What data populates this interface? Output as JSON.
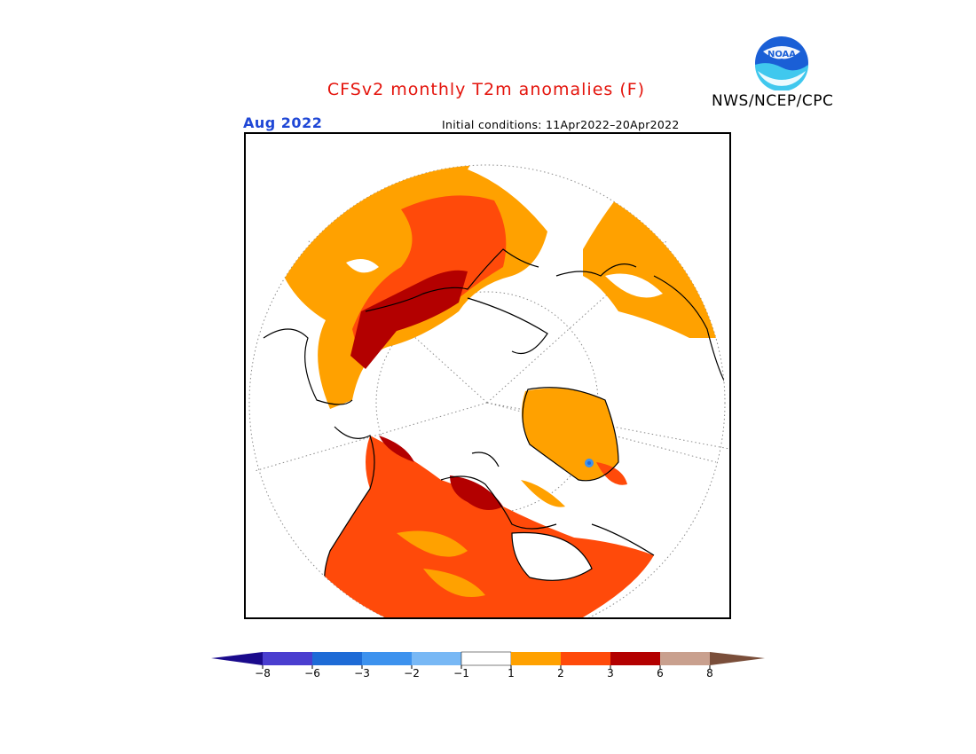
{
  "header": {
    "title": "CFSv2 monthly T2m anomalies (F)",
    "agency": "NWS/NCEP/CPC",
    "logo_text": "NOAA",
    "valid_month": "Aug 2022",
    "initial_conditions": "Initial conditions: 11Apr2022–20Apr2022"
  },
  "map": {
    "projection": "north-polar-stereographic",
    "variable": "T2m anomaly"
  },
  "colorbar": {
    "ticks": [
      "−8",
      "−6",
      "−3",
      "−2",
      "−1",
      "1",
      "2",
      "3",
      "6",
      "8"
    ],
    "colors": {
      "below_min": "#1a0a8c",
      "bin_m8_m6": "#4a3ecf",
      "bin_m6_m3": "#1e6bd6",
      "bin_m3_m2": "#3d92ee",
      "bin_m2_m1": "#78b8f5",
      "bin_m1_1": "#ffffff",
      "bin_1_2": "#ffa100",
      "bin_2_3": "#ff4a0a",
      "bin_3_6": "#b30000",
      "bin_6_8": "#c9a08e",
      "above_max": "#7a4e3a"
    }
  },
  "colors": {
    "title": "#e4140c",
    "month": "#1f47d6"
  }
}
